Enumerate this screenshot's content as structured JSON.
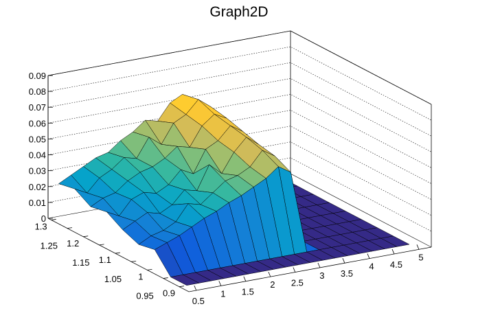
{
  "chart_data": {
    "type": "surface",
    "title": "Graph2D",
    "xlabel": "",
    "ylabel": "",
    "zlabel": "",
    "xlim": [
      0.35,
      5.25
    ],
    "ylim": [
      0.87,
      1.31
    ],
    "zlim": [
      0,
      0.09
    ],
    "x_ticks": [
      "0.5",
      "1",
      "1.5",
      "2",
      "2.5",
      "3",
      "3.5",
      "4",
      "4.5",
      "5"
    ],
    "y_ticks": [
      "0.9",
      "0.95",
      "1",
      "1.05",
      "1.1",
      "1.15",
      "1.2",
      "1.25",
      "1.3"
    ],
    "z_ticks": [
      "0",
      "0.01",
      "0.02",
      "0.03",
      "0.04",
      "0.05",
      "0.06",
      "0.07",
      "0.08",
      "0.09"
    ],
    "palette": [
      "#352a87",
      "#0f5cdd",
      "#1481d6",
      "#06a4ca",
      "#2eb7a4",
      "#87bf77",
      "#d1bb59",
      "#fec832",
      "#f9fb0e"
    ],
    "grid_x": [
      0.5,
      0.75,
      1,
      1.25,
      1.5,
      1.75,
      2,
      2.25,
      2.5,
      2.75,
      3,
      3.25,
      3.5,
      3.75,
      4,
      4.25,
      4.5,
      4.75,
      5
    ],
    "grid_y": [
      0.9,
      0.95,
      1.0,
      1.05,
      1.1,
      1.15,
      1.2,
      1.25,
      1.3
    ],
    "z": [
      [
        0,
        0,
        0,
        0,
        0,
        0,
        0,
        0,
        0,
        0,
        0,
        0,
        0,
        0,
        0,
        0,
        0,
        0,
        0
      ],
      [
        0,
        0,
        0,
        0,
        0,
        0,
        0,
        0,
        0,
        0,
        0,
        0,
        0,
        0,
        0,
        0,
        0,
        0,
        0
      ],
      [
        0.012,
        0.015,
        0.018,
        0.022,
        0.026,
        0.029,
        0.033,
        0.036,
        0.04,
        0.044,
        0.05,
        0.045,
        0,
        0,
        0,
        0,
        0,
        0,
        0
      ],
      [
        0.01,
        0.014,
        0.016,
        0.02,
        0.03,
        0.028,
        0.034,
        0.04,
        0.042,
        0.046,
        0.055,
        0.05,
        0,
        0,
        0,
        0,
        0,
        0,
        0
      ],
      [
        0.014,
        0.018,
        0.022,
        0.02,
        0.024,
        0.032,
        0.03,
        0.045,
        0.038,
        0.05,
        0.058,
        0.052,
        0,
        0,
        0,
        0,
        0,
        0,
        0
      ],
      [
        0.02,
        0.016,
        0.025,
        0.028,
        0.026,
        0.03,
        0.038,
        0.034,
        0.048,
        0.052,
        0.06,
        0.055,
        0,
        0,
        0,
        0,
        0,
        0,
        0
      ],
      [
        0.018,
        0.022,
        0.024,
        0.03,
        0.034,
        0.036,
        0.04,
        0.046,
        0.044,
        0.056,
        0.062,
        0.058,
        0,
        0,
        0,
        0,
        0,
        0,
        0
      ],
      [
        0.024,
        0.02,
        0.028,
        0.032,
        0.038,
        0.036,
        0.048,
        0.042,
        0.054,
        0.058,
        0.066,
        0.06,
        0,
        0,
        0,
        0,
        0,
        0,
        0
      ],
      [
        0.022,
        0.026,
        0.03,
        0.034,
        0.036,
        0.042,
        0.046,
        0.052,
        0.05,
        0.06,
        0.064,
        0.058,
        0,
        0,
        0,
        0,
        0,
        0,
        0
      ]
    ]
  }
}
